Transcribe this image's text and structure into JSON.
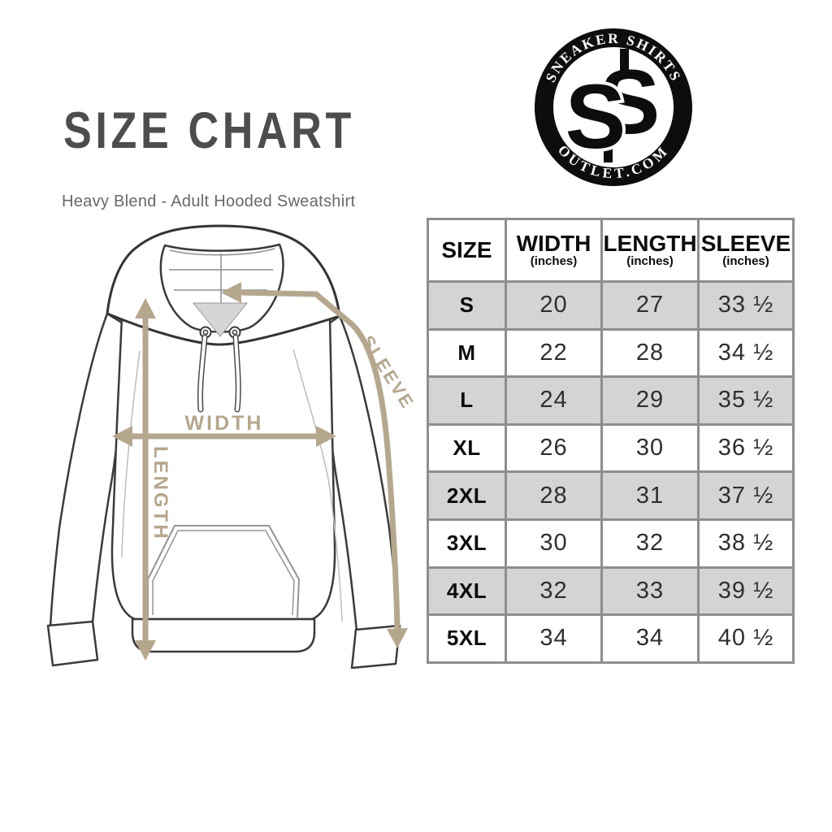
{
  "page": {
    "title": "SIZE CHART",
    "subtitle": "Heavy Blend - Adult Hooded Sweatshirt"
  },
  "logo": {
    "arc_top": "SNEAKER SHIRTS",
    "arc_bottom": "OUTLET.COM",
    "monogram_left": "S",
    "monogram_right": "S"
  },
  "diagram": {
    "width_label": "WIDTH",
    "length_label": "LENGTH",
    "sleeve_label": "SLEEVE"
  },
  "size_table": {
    "columns": [
      {
        "label": "SIZE",
        "unit": ""
      },
      {
        "label": "WIDTH",
        "unit": "(inches)"
      },
      {
        "label": "LENGTH",
        "unit": "(inches)"
      },
      {
        "label": "SLEEVE",
        "unit": "(inches)"
      }
    ],
    "rows": [
      [
        "S",
        "20",
        "27",
        "33 ½"
      ],
      [
        "M",
        "22",
        "28",
        "34 ½"
      ],
      [
        "L",
        "24",
        "29",
        "35 ½"
      ],
      [
        "XL",
        "26",
        "30",
        "36 ½"
      ],
      [
        "2XL",
        "28",
        "31",
        "37 ½"
      ],
      [
        "3XL",
        "30",
        "32",
        "38 ½"
      ],
      [
        "4XL",
        "32",
        "33",
        "39 ½"
      ],
      [
        "5XL",
        "34",
        "34",
        "40 ½"
      ]
    ]
  },
  "colors": {
    "accent_tan": "#b5a78e",
    "row_shade": "#d4d4d4",
    "table_border": "#8e8e8e",
    "title_gray": "#4d4d4d",
    "outline_dark": "#3b3b3b",
    "hood_triangle": "#d6d6d6"
  }
}
